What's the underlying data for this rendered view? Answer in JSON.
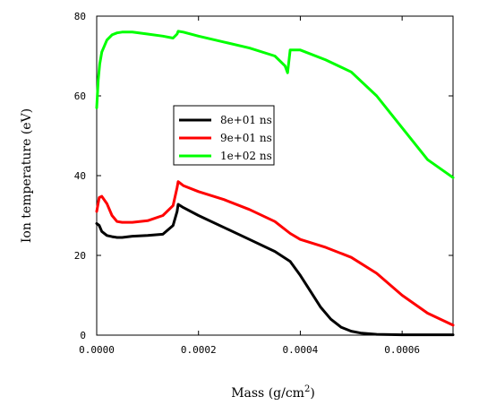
{
  "chart_data": {
    "type": "line",
    "title": "",
    "xlabel": "Mass (g/cm",
    "xlabel_sup": "2",
    "xlabel_end": ")",
    "ylabel": "Ion temperature (eV)",
    "xlim": [
      0,
      0.0007
    ],
    "ylim": [
      0,
      80
    ],
    "x_ticks": [
      0,
      0.0002,
      0.0004,
      0.0006
    ],
    "x_tick_labels": [
      "0.0000",
      "0.0002",
      "0.0004",
      "0.0006"
    ],
    "y_ticks": [
      0,
      20,
      40,
      60,
      80
    ],
    "y_tick_labels": [
      "0",
      "20",
      "40",
      "60",
      "80"
    ],
    "grid": false,
    "legend_position": "center-left",
    "series": [
      {
        "name": "8e+01 ns",
        "color": "#000000",
        "x": [
          0,
          5e-06,
          1e-05,
          2e-05,
          3e-05,
          4e-05,
          5e-05,
          7e-05,
          0.0001,
          0.00013,
          0.00015,
          0.000158,
          0.00016,
          0.00017,
          0.0002,
          0.00025,
          0.0003,
          0.00035,
          0.00038,
          0.0004,
          0.00042,
          0.00044,
          0.00046,
          0.00048,
          0.0005,
          0.00052,
          0.00055,
          0.0006,
          0.0007
        ],
        "y": [
          28,
          27.5,
          26,
          25,
          24.7,
          24.5,
          24.5,
          24.8,
          25,
          25.3,
          27.5,
          31,
          32.8,
          32,
          30,
          27,
          24,
          21,
          18.5,
          15,
          11,
          7,
          4,
          2,
          1,
          0.5,
          0.2,
          0.1,
          0.1
        ]
      },
      {
        "name": "9e+01 ns",
        "color": "#ff0000",
        "x": [
          0,
          5e-06,
          1e-05,
          2e-05,
          3e-05,
          4e-05,
          5e-05,
          7e-05,
          0.0001,
          0.00013,
          0.00015,
          0.000158,
          0.00016,
          0.00017,
          0.0002,
          0.00025,
          0.0003,
          0.00035,
          0.00038,
          0.0004,
          0.00045,
          0.0005,
          0.00055,
          0.0006,
          0.00065,
          0.0007
        ],
        "y": [
          31,
          34.5,
          34.8,
          33,
          30,
          28.5,
          28.3,
          28.3,
          28.7,
          30,
          32.5,
          37,
          38.5,
          37.5,
          36,
          34,
          31.5,
          28.5,
          25.5,
          24,
          22,
          19.5,
          15.5,
          10,
          5.5,
          2.5
        ]
      },
      {
        "name": "1e+02 ns",
        "color": "#00ff00",
        "x": [
          0,
          3e-06,
          6e-06,
          1e-05,
          2e-05,
          3e-05,
          4e-05,
          5e-05,
          7e-05,
          0.0001,
          0.00013,
          0.00015,
          0.000158,
          0.00016,
          0.00017,
          0.0002,
          0.00025,
          0.0003,
          0.00035,
          0.00037,
          0.000375,
          0.00038,
          0.0004,
          0.00045,
          0.0005,
          0.00055,
          0.0006,
          0.00065,
          0.0007
        ],
        "y": [
          57,
          64,
          68,
          71,
          74,
          75.3,
          75.8,
          76,
          76,
          75.5,
          75,
          74.5,
          75.5,
          76.2,
          76,
          75,
          73.5,
          72,
          70,
          67.5,
          65.8,
          71.5,
          71.5,
          69,
          66,
          60,
          52,
          44,
          39.5
        ]
      }
    ]
  }
}
